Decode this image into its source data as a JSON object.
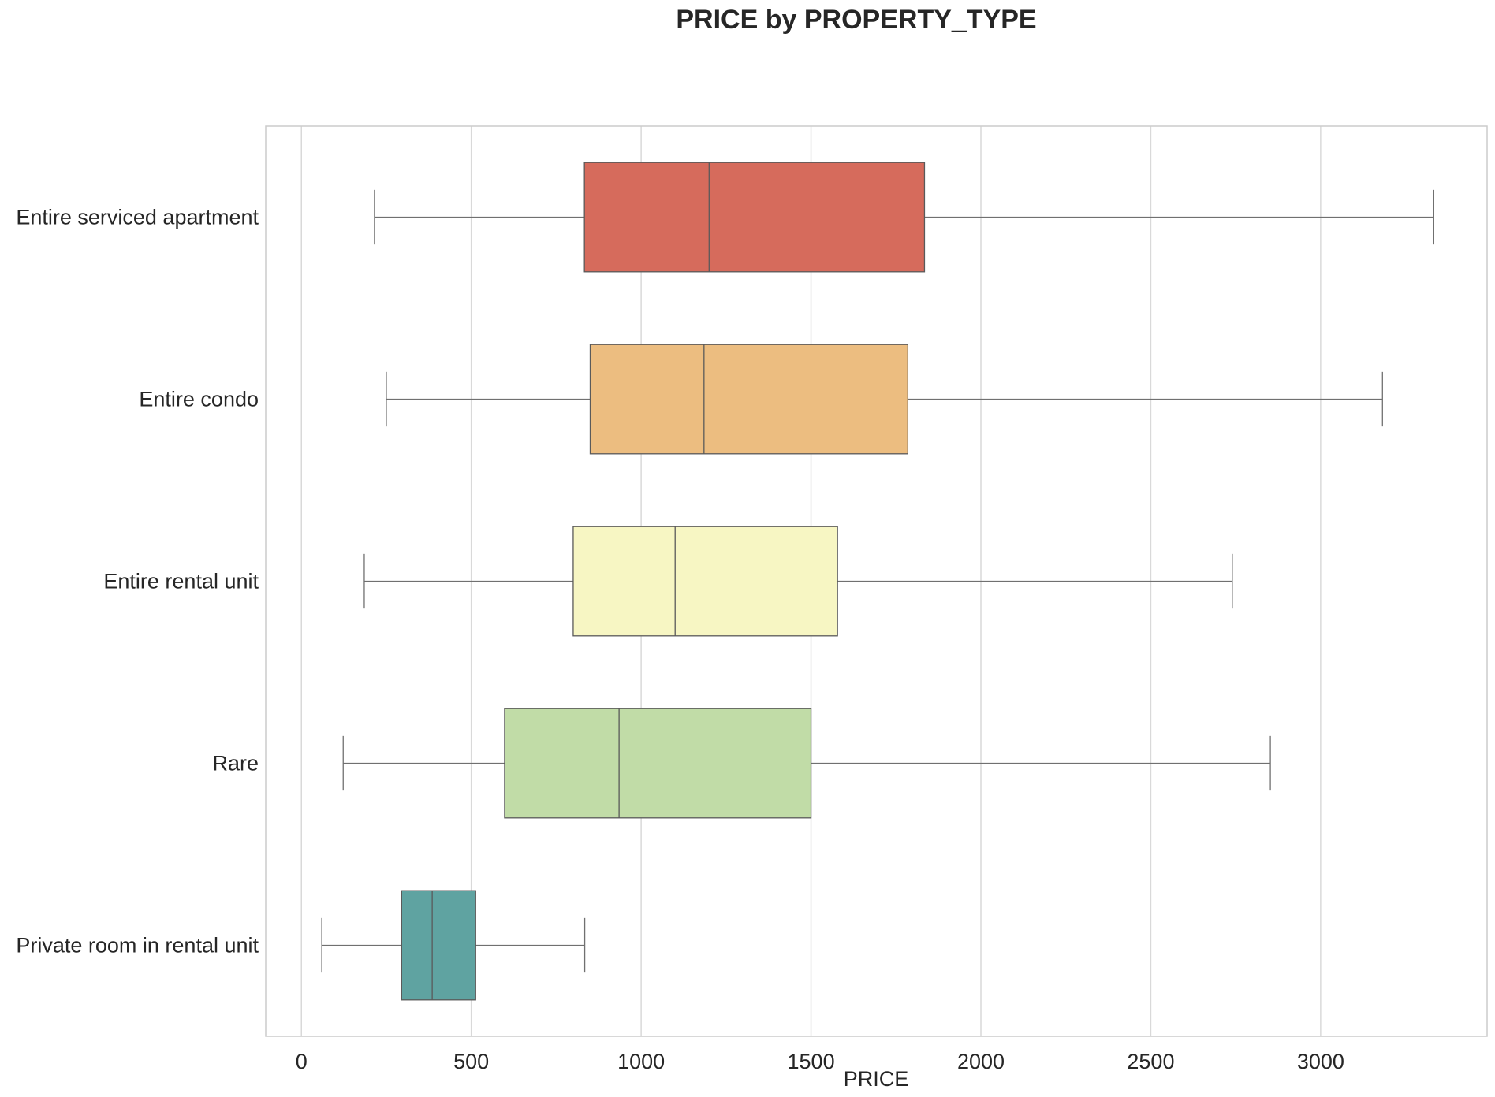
{
  "chart_data": {
    "type": "box",
    "orientation": "horizontal",
    "title": "PRICE by PROPERTY_TYPE",
    "xlabel": "PRICE",
    "ylabel": "",
    "xlim": [
      -105,
      3490
    ],
    "xticks": [
      0,
      500,
      1000,
      1500,
      2000,
      2500,
      3000
    ],
    "xtick_labels": [
      "0",
      "500",
      "1000",
      "1500",
      "2000",
      "2500",
      "3000"
    ],
    "grid": "vertical",
    "categories": [
      "Entire serviced apartment",
      "Entire condo",
      "Entire rental unit",
      "Rare",
      "Private room in rental unit"
    ],
    "boxes": [
      {
        "category": "Entire serviced apartment",
        "whisker_low": 215,
        "q1": 833,
        "median": 1200,
        "q3": 1834,
        "whisker_high": 3333,
        "color": "#d66b5c"
      },
      {
        "category": "Entire condo",
        "whisker_low": 250,
        "q1": 850,
        "median": 1185,
        "q3": 1785,
        "whisker_high": 3182,
        "color": "#ecbd80"
      },
      {
        "category": "Entire rental unit",
        "whisker_low": 185,
        "q1": 800,
        "median": 1100,
        "q3": 1578,
        "whisker_high": 2740,
        "color": "#f7f6c3"
      },
      {
        "category": "Rare",
        "whisker_low": 123,
        "q1": 598,
        "median": 935,
        "q3": 1500,
        "whisker_high": 2852,
        "color": "#c1dca7"
      },
      {
        "category": "Private room in rental unit",
        "whisker_low": 60,
        "q1": 295,
        "median": 385,
        "q3": 513,
        "whisker_high": 834,
        "color": "#5fa3a1"
      }
    ]
  }
}
